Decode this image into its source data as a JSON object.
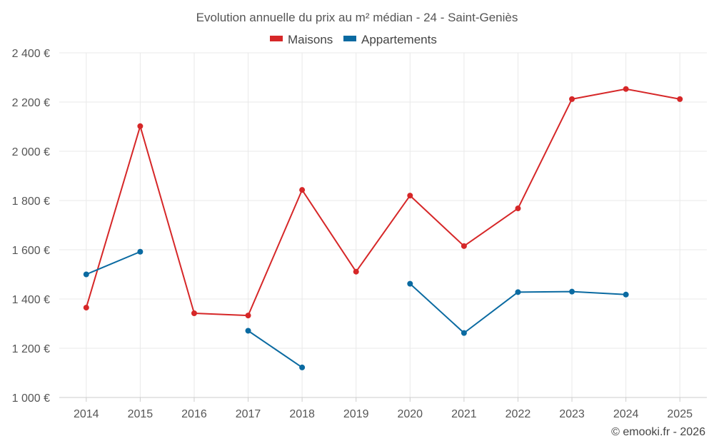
{
  "chart_data": {
    "type": "line",
    "title": "Evolution annuelle du prix au m² médian - 24 - Saint-Geniès",
    "categories": [
      "2014",
      "2015",
      "2016",
      "2017",
      "2018",
      "2019",
      "2020",
      "2021",
      "2022",
      "2023",
      "2024",
      "2025"
    ],
    "series": [
      {
        "name": "Maisons",
        "color": "#d62728",
        "values": [
          1365,
          2102,
          1342,
          1333,
          1843,
          1511,
          1820,
          1615,
          1768,
          2212,
          2253,
          2212
        ]
      },
      {
        "name": "Appartements",
        "color": "#0a6aa1",
        "values": [
          1500,
          1592,
          null,
          1271,
          1122,
          null,
          1462,
          1262,
          1428,
          1430,
          1418,
          null
        ]
      }
    ],
    "ylim": [
      1000,
      2400
    ],
    "yticks": [
      1000,
      1200,
      1400,
      1600,
      1800,
      2000,
      2200,
      2400
    ],
    "ytick_labels": [
      "1 000 €",
      "1 200 €",
      "1 400 €",
      "1 600 €",
      "1 800 €",
      "2 000 €",
      "2 200 €",
      "2 400 €"
    ],
    "xlabel": "",
    "ylabel": "",
    "legend_position": "top-center",
    "grid": true
  },
  "credit": "© emooki.fr - 2026"
}
